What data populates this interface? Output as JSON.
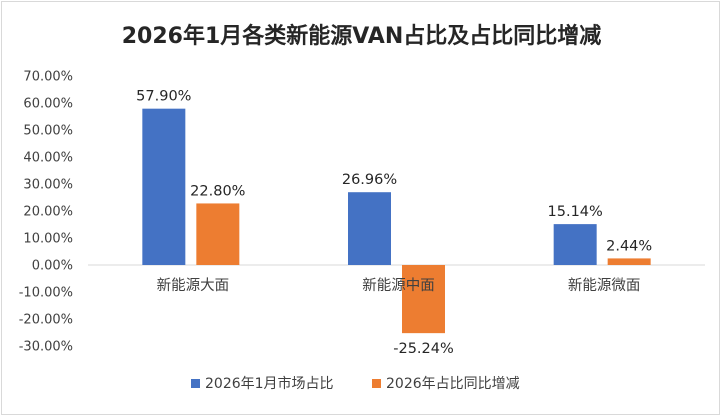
{
  "chart_data": {
    "type": "bar",
    "title": "2026年1月各类新能源VAN占比及占比同比增减",
    "categories": [
      "新能源大面",
      "新能源中面",
      "新能源微面"
    ],
    "series": [
      {
        "name": "2026年1月市场占比",
        "values": [
          57.9,
          26.96,
          15.14
        ],
        "labels": [
          "57.90%",
          "26.96%",
          "15.14%"
        ],
        "color": "#4472C4"
      },
      {
        "name": "2026年占比同比增减",
        "values": [
          22.8,
          -25.24,
          2.44
        ],
        "labels": [
          "22.80%",
          "-25.24%",
          "2.44%"
        ],
        "color": "#ED7D31"
      }
    ],
    "ylim": [
      -30,
      70
    ],
    "yticks": [
      70,
      60,
      50,
      40,
      30,
      20,
      10,
      0,
      -10,
      -20,
      -30
    ],
    "ytick_labels": [
      "70.00%",
      "60.00%",
      "50.00%",
      "40.00%",
      "30.00%",
      "20.00%",
      "10.00%",
      "0.00%",
      "-10.00%",
      "-20.00%",
      "-30.00%"
    ],
    "xlabel": "",
    "ylabel": "",
    "grid": false,
    "legend": "bottom"
  }
}
